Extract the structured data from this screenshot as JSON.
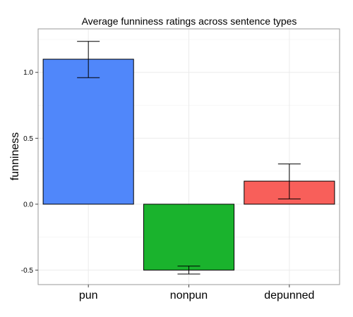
{
  "chart_data": {
    "type": "bar",
    "title": "Average funniness ratings across sentence types",
    "xlabel": "",
    "ylabel": "funniness",
    "categories": [
      "pun",
      "nonpun",
      "depunned"
    ],
    "values": [
      1.1,
      -0.5,
      0.175
    ],
    "error_low": [
      0.96,
      -0.53,
      0.04
    ],
    "error_high": [
      1.235,
      -0.47,
      0.305
    ],
    "colors": [
      "#5087fa",
      "#1ab32d",
      "#f85f5a"
    ],
    "ylim": [
      -0.61,
      1.33
    ],
    "yticks": [
      -0.5,
      0.0,
      0.5,
      1.0
    ],
    "ytick_labels": [
      "-0.5",
      "0.0",
      "0.5",
      "1.0"
    ],
    "grid": true,
    "legend": "none"
  }
}
